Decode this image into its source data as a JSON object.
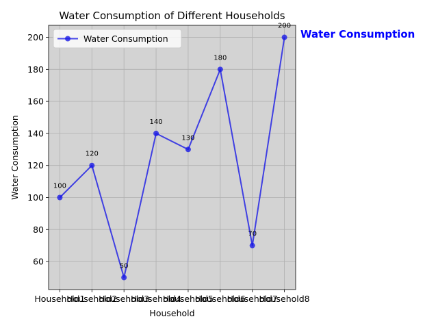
{
  "chart_data": {
    "type": "line",
    "title": "Water Consumption of Different Households",
    "xlabel": "Household",
    "ylabel": "Water Consumption",
    "categories": [
      "Household1",
      "Household2",
      "Household3",
      "Household4",
      "Household5",
      "Household6",
      "Household7",
      "Household8"
    ],
    "series": [
      {
        "name": "Water Consumption",
        "values": [
          100,
          120,
          50,
          140,
          130,
          180,
          70,
          200
        ],
        "color": "#1a1ae6"
      }
    ],
    "data_labels": [
      "100",
      "120",
      "50",
      "140",
      "130",
      "180",
      "70",
      "200"
    ],
    "ylim": [
      42.5,
      207.5
    ],
    "yticks": [
      60,
      80,
      100,
      120,
      140,
      160,
      180,
      200
    ],
    "grid": true,
    "legend_position": "top-left",
    "side_annotation": "Water Consumption",
    "colors": {
      "plot_background": "#d3d3d3",
      "grid": "#b0b0b0",
      "annotation": "#0000ff"
    }
  }
}
